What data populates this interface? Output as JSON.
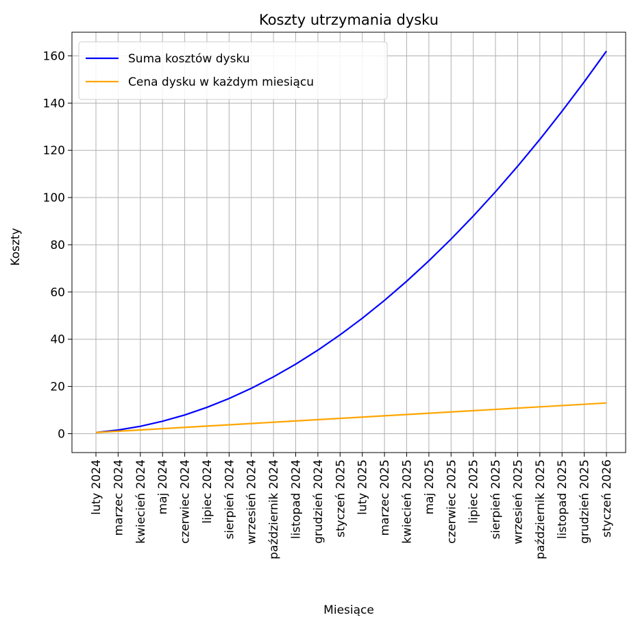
{
  "chart_data": {
    "type": "line",
    "title": "Koszty utrzymania dysku",
    "xlabel": "Miesiące",
    "ylabel": "Koszty",
    "categories": [
      "luty 2024",
      "marzec 2024",
      "kwiecień 2024",
      "maj 2024",
      "czerwiec 2024",
      "lipiec 2024",
      "sierpień 2024",
      "wrzesień 2024",
      "październik 2024",
      "listopad 2024",
      "grudzień 2024",
      "styczeń 2025",
      "luty 2025",
      "marzec 2025",
      "kwiecień 2025",
      "maj 2025",
      "czerwiec 2025",
      "lipiec 2025",
      "sierpień 2025",
      "wrzesień 2025",
      "październik 2025",
      "listopad 2025",
      "grudzień 2025",
      "styczeń 2026"
    ],
    "series": [
      {
        "name": "Suma kosztów dysku",
        "color": "#0000ff",
        "values": [
          0.5,
          1.54,
          3.13,
          5.26,
          7.93,
          11.15,
          14.91,
          19.21,
          24.06,
          29.45,
          35.38,
          41.86,
          48.88,
          56.45,
          64.56,
          73.21,
          82.41,
          92.15,
          102.43,
          113.26,
          124.63,
          136.54,
          149.0,
          162.0
        ]
      },
      {
        "name": "Cena dysku w każdym miesiącu",
        "color": "#ffa500",
        "values": [
          0.5,
          1.04,
          1.59,
          2.13,
          2.67,
          3.22,
          3.76,
          4.3,
          4.85,
          5.39,
          5.93,
          6.48,
          7.02,
          7.57,
          8.11,
          8.65,
          9.2,
          9.74,
          10.28,
          10.83,
          11.37,
          11.91,
          12.46,
          13.0
        ]
      }
    ],
    "ylim": [
      -8,
      170
    ],
    "yticks": [
      0,
      20,
      40,
      60,
      80,
      100,
      120,
      140,
      160
    ],
    "grid": true,
    "legend": "upper left"
  }
}
